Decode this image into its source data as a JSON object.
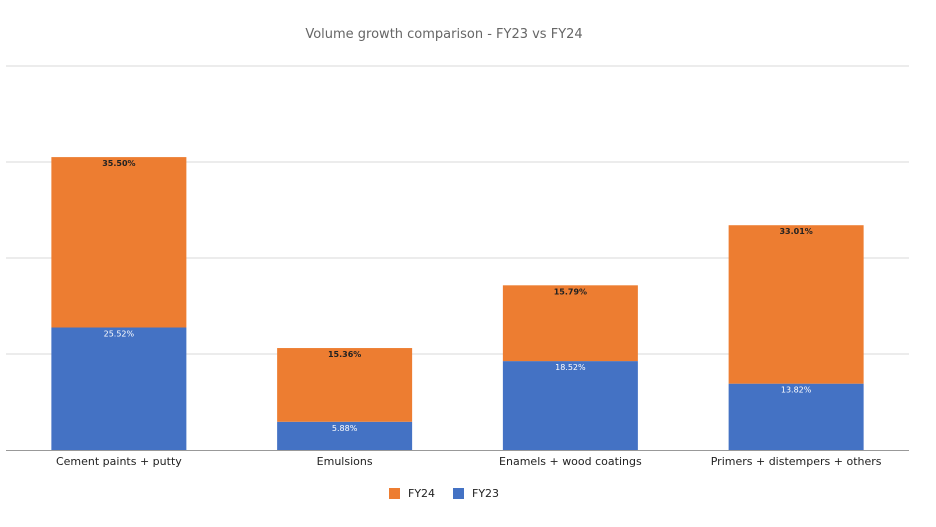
{
  "chart_data": {
    "type": "bar",
    "stacked": true,
    "title": "Volume growth comparison - FY23 vs FY24",
    "xlabel": "",
    "ylabel": "",
    "categories": [
      "Cement paints + putty",
      "Emulsions",
      "Enamels + wood coatings",
      "Primers + distempers + others"
    ],
    "series": [
      {
        "name": "FY23",
        "color": "#4472C4",
        "values": [
          25.52,
          5.88,
          18.52,
          13.82
        ],
        "labels": [
          "25.52%",
          "5.88%",
          "18.52%",
          "13.82%"
        ]
      },
      {
        "name": "FY24",
        "color": "#ED7D31",
        "values": [
          35.5,
          15.36,
          15.79,
          33.01
        ],
        "labels": [
          "35.50%",
          "15.36%",
          "15.79%",
          "33.01%"
        ]
      }
    ],
    "legend_order": [
      "FY24",
      "FY23"
    ],
    "legend_position": "bottom",
    "ylim": [
      0,
      80
    ],
    "gridlines": [
      0,
      20,
      40,
      60,
      80
    ],
    "grid": true,
    "y_tick_labels_shown": false
  },
  "colors": {
    "background": "#ffffff",
    "grid": "#d9d9d9",
    "axis": "#999999"
  }
}
